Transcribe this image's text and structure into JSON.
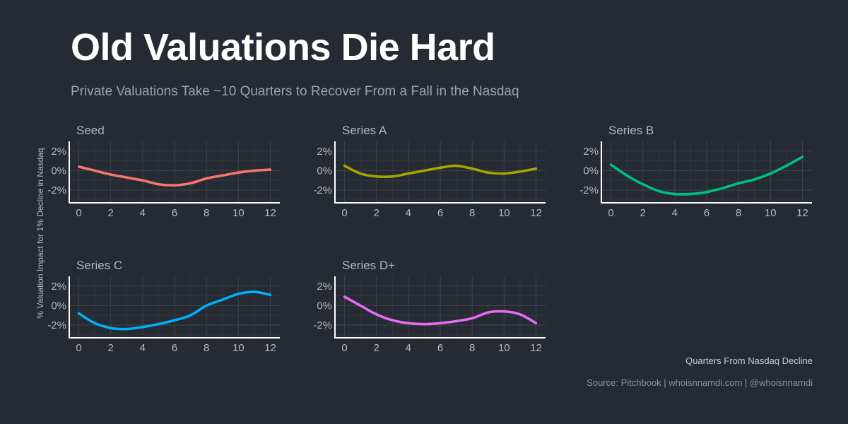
{
  "title": "Old Valuations Die Hard",
  "subtitle": "Private Valuations Take ~10 Quarters to Recover From a Fall in the Nasdaq",
  "ylabel": "% Valuation Impact for 1% Decline in Nasdaq",
  "xlabel": "Quarters From Nasdaq Decline",
  "caption": "Source: Pitchbook | whoisnnamdi.com | @whoisnnamdi",
  "chart_data": {
    "type": "line",
    "layout": "facets",
    "x_ticks": [
      0,
      2,
      4,
      6,
      8,
      10,
      12
    ],
    "y_ticks": [
      2,
      0,
      -2
    ],
    "y_tick_labels": [
      "2%",
      "0%",
      "-2%"
    ],
    "xlim": [
      -0.6,
      12.6
    ],
    "ylim": [
      -3.3,
      3.0
    ],
    "x": [
      0,
      1,
      2,
      3,
      4,
      5,
      6,
      7,
      8,
      9,
      10,
      11,
      12
    ],
    "series": [
      {
        "name": "Seed",
        "color": "#f8766d",
        "values": [
          0.4,
          0.0,
          -0.4,
          -0.7,
          -1.0,
          -1.4,
          -1.5,
          -1.3,
          -0.8,
          -0.5,
          -0.2,
          0.0,
          0.1
        ]
      },
      {
        "name": "Series A",
        "color": "#a3a500",
        "values": [
          0.5,
          -0.3,
          -0.6,
          -0.6,
          -0.3,
          0.0,
          0.3,
          0.5,
          0.2,
          -0.2,
          -0.3,
          -0.1,
          0.2
        ]
      },
      {
        "name": "Series B",
        "color": "#00bf7d",
        "values": [
          0.6,
          -0.5,
          -1.4,
          -2.1,
          -2.4,
          -2.4,
          -2.2,
          -1.8,
          -1.3,
          -0.9,
          -0.3,
          0.5,
          1.4
        ]
      },
      {
        "name": "Series C",
        "color": "#00b0f6",
        "values": [
          -0.8,
          -1.8,
          -2.3,
          -2.4,
          -2.2,
          -1.9,
          -1.5,
          -1.0,
          0.0,
          0.6,
          1.2,
          1.4,
          1.1
        ]
      },
      {
        "name": "Series D+",
        "color": "#e76bf3",
        "values": [
          0.9,
          0.0,
          -0.9,
          -1.5,
          -1.8,
          -1.9,
          -1.8,
          -1.6,
          -1.3,
          -0.7,
          -0.6,
          -0.9,
          -1.8
        ]
      }
    ]
  }
}
